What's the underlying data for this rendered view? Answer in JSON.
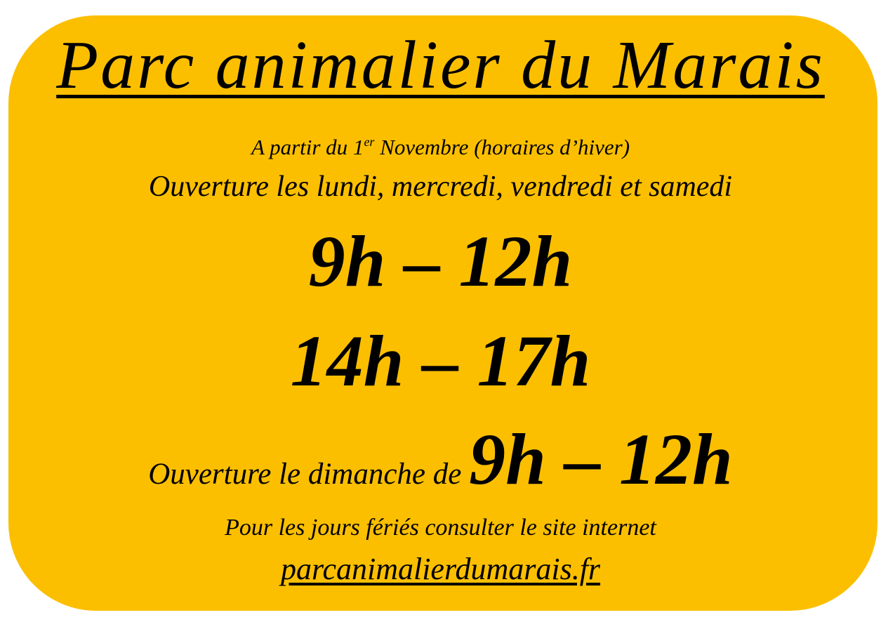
{
  "poster": {
    "background_color": "#FBBF00",
    "title": "Parc animalier du Marais",
    "subtitle_prefix": "A partir du 1",
    "subtitle_sup": "er",
    "subtitle_suffix": " Novembre (horaires d’hiver)",
    "weekdays_text": "Ouverture les lundi, mercredi, vendredi et samedi",
    "hours_morning": "9h – 12h",
    "hours_afternoon": "14h – 17h",
    "sunday_text": "Ouverture le dimanche de ",
    "sunday_hours": "9h – 12h",
    "holidays_text": "Pour les jours fériés consulter le site internet",
    "website": "parcanimalierdumarais.fr"
  }
}
